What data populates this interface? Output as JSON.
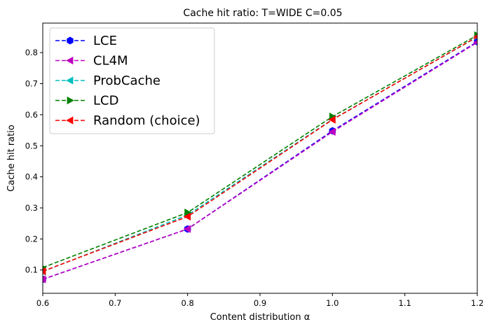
{
  "chart_data": {
    "type": "line",
    "title": "Cache hit ratio: T=WIDE C=0.05",
    "xlabel": "Content distribution α",
    "ylabel": "Cache hit ratio",
    "xlim": [
      0.6,
      1.2
    ],
    "ylim": [
      0.025,
      0.895
    ],
    "x": [
      0.6,
      0.8,
      1.0,
      1.2
    ],
    "xticks": [
      "0.6",
      "0.7",
      "0.8",
      "0.9",
      "1.0",
      "1.1",
      "1.2"
    ],
    "yticks": [
      "0.1",
      "0.2",
      "0.3",
      "0.4",
      "0.5",
      "0.6",
      "0.7",
      "0.8"
    ],
    "grid": false,
    "legend_position": "top-left",
    "series": [
      {
        "name": "LCE",
        "color": "#0000ff",
        "marker": "hexagon",
        "values": [
          0.07,
          0.232,
          0.548,
          0.835
        ]
      },
      {
        "name": "CL4M",
        "color": "#bf00bf",
        "marker": "triangle-left",
        "values": [
          0.07,
          0.232,
          0.545,
          0.833
        ]
      },
      {
        "name": "ProbCache",
        "color": "#00bfbf",
        "marker": "triangle-left",
        "values": [
          0.095,
          0.277,
          0.585,
          0.85
        ]
      },
      {
        "name": "LCD",
        "color": "#008000",
        "marker": "triangle-right",
        "values": [
          0.108,
          0.285,
          0.594,
          0.856
        ]
      },
      {
        "name": "Random (choice)",
        "color": "#ff0000",
        "marker": "triangle-left",
        "values": [
          0.096,
          0.272,
          0.584,
          0.851
        ]
      }
    ]
  }
}
